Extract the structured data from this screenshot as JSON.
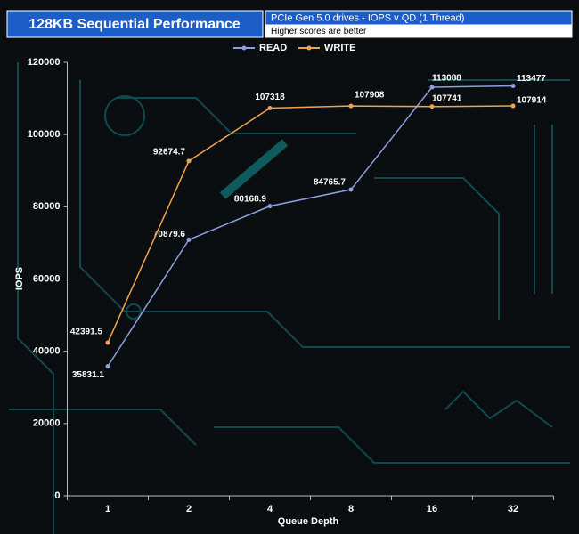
{
  "chart_data": {
    "type": "line",
    "title": "128KB Sequential Performance",
    "subtitle": "PCIe Gen 5.0 drives - IOPS v QD (1 Thread)",
    "note": "Higher scores are better",
    "x_label": "Queue Depth",
    "y_label": "IOPS",
    "categories": [
      "1",
      "2",
      "4",
      "8",
      "16",
      "32"
    ],
    "series": [
      {
        "name": "READ",
        "color": "#8c9fe0",
        "values": [
          35831.1,
          70879.6,
          80168.9,
          84765.7,
          113088,
          113477
        ]
      },
      {
        "name": "WRITE",
        "color": "#f0a24e",
        "values": [
          42391.5,
          92674.7,
          107318,
          107908,
          107741,
          107914
        ]
      }
    ],
    "ylim": [
      0,
      120000
    ],
    "yticks": [
      0,
      20000,
      40000,
      60000,
      80000,
      100000,
      120000
    ],
    "legend": "top"
  }
}
